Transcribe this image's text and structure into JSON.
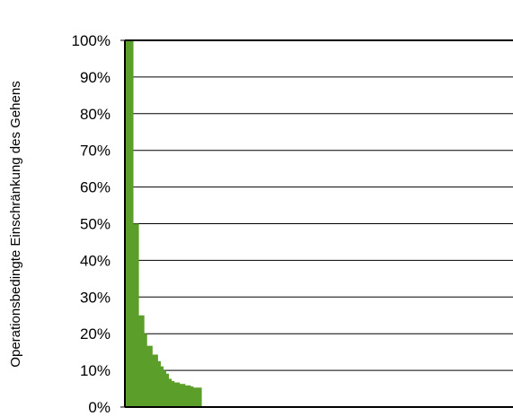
{
  "chart_data": {
    "type": "bar",
    "title": "",
    "xlabel": "",
    "ylabel": "Operationsbedingte Einschränkung des Gehens",
    "ylim": [
      0,
      100
    ],
    "y_ticks": [
      "0%",
      "10%",
      "20%",
      "30%",
      "40%",
      "50%",
      "60%",
      "70%",
      "80%",
      "90%",
      "100%"
    ],
    "grid": true,
    "bar_color": "#5c9e2a",
    "values": [
      100,
      100,
      100,
      50,
      50,
      25,
      25,
      20,
      16.7,
      16.7,
      14.3,
      14.3,
      12.5,
      11.1,
      10,
      9.1,
      7.7,
      7.1,
      6.7,
      6.7,
      6.3,
      6.3,
      5.9,
      5.9,
      5.6,
      5.3,
      5.3,
      5.3
    ],
    "n_slots": 142
  }
}
